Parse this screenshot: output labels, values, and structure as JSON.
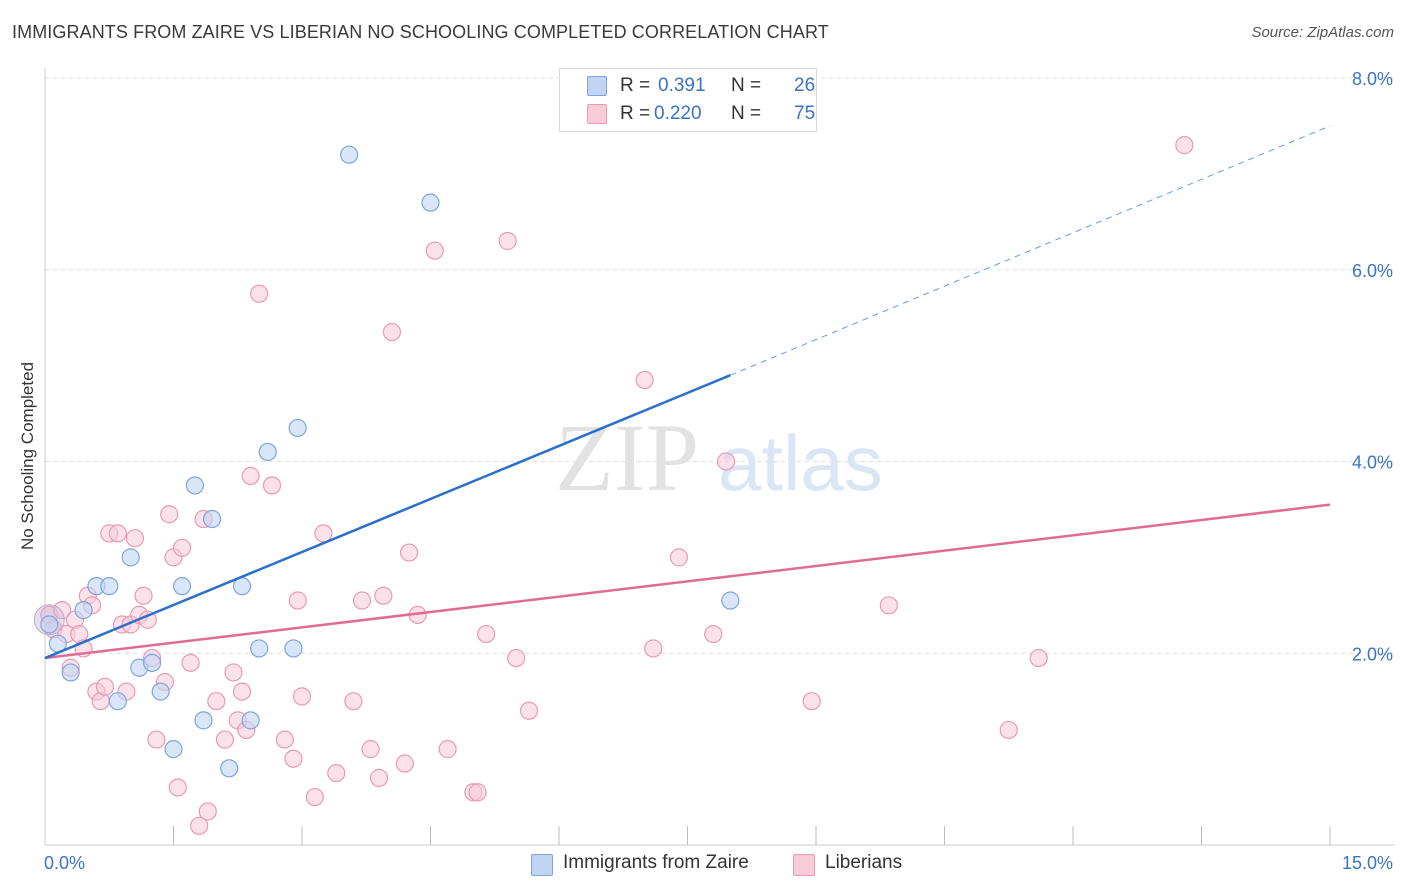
{
  "title": "IMMIGRANTS FROM ZAIRE VS LIBERIAN NO SCHOOLING COMPLETED CORRELATION CHART",
  "source": "Source: ZipAtlas.com",
  "watermark": {
    "zip": "ZIP",
    "atlas": "atlas"
  },
  "colors": {
    "zaire_fill": "#c0d5f3",
    "zaire_stroke": "#7fa5dc",
    "zaire_line": "#2a6fc9",
    "liberian_fill": "#f8cbd9",
    "liberian_stroke": "#e99ab5",
    "liberian_line": "#e06c96",
    "axis_text": "#3b73c4",
    "grid": "#dddddd"
  },
  "legend": {
    "rows": [
      {
        "r_label": "R =",
        "r_value": "0.391",
        "n_label": "N =",
        "n_value": "26"
      },
      {
        "r_label": "R =",
        "r_value": "0.220",
        "n_label": "N =",
        "n_value": "75"
      }
    ]
  },
  "chart_data": {
    "type": "scatter",
    "ylabel": "No Schooling Completed",
    "xlim": [
      0,
      15
    ],
    "ylim": [
      0,
      8
    ],
    "x_tick_labels": [
      "0.0%",
      "15.0%"
    ],
    "y_ticks": [
      {
        "value": 2,
        "label": "2.0%"
      },
      {
        "value": 4,
        "label": "4.0%"
      },
      {
        "value": 6,
        "label": "6.0%"
      },
      {
        "value": 8,
        "label": "8.0%"
      }
    ],
    "x_minor_ticks": [
      1.5,
      3,
      4.5,
      6,
      7.5,
      9,
      10.5,
      12,
      13.5,
      15
    ],
    "grid": true,
    "legend_position": "top-center",
    "series": [
      {
        "name": "Immigrants from Zaire",
        "r": 0.391,
        "n": 26,
        "points": [
          [
            0.05,
            2.3
          ],
          [
            0.15,
            2.1
          ],
          [
            0.3,
            1.8
          ],
          [
            0.45,
            2.45
          ],
          [
            0.6,
            2.7
          ],
          [
            0.75,
            2.7
          ],
          [
            0.85,
            1.5
          ],
          [
            1.0,
            3.0
          ],
          [
            1.1,
            1.85
          ],
          [
            1.25,
            1.9
          ],
          [
            1.35,
            1.6
          ],
          [
            1.5,
            1.0
          ],
          [
            1.6,
            2.7
          ],
          [
            1.75,
            3.75
          ],
          [
            1.85,
            1.3
          ],
          [
            1.95,
            3.4
          ],
          [
            2.15,
            0.8
          ],
          [
            2.3,
            2.7
          ],
          [
            2.4,
            1.3
          ],
          [
            2.5,
            2.05
          ],
          [
            2.6,
            4.1
          ],
          [
            2.9,
            2.05
          ],
          [
            2.95,
            4.35
          ],
          [
            3.55,
            7.2
          ],
          [
            4.5,
            6.7
          ],
          [
            8.0,
            2.55
          ]
        ],
        "trend": {
          "x0": 0.0,
          "y0": 1.95,
          "x1": 8.0,
          "y1": 4.9,
          "dash_x1": 15.0,
          "dash_y1": 7.5
        }
      },
      {
        "name": "Liberians",
        "r": 0.22,
        "n": 75,
        "points": [
          [
            0.05,
            2.4
          ],
          [
            0.1,
            2.25
          ],
          [
            0.2,
            2.45
          ],
          [
            0.25,
            2.2
          ],
          [
            0.3,
            1.85
          ],
          [
            0.35,
            2.35
          ],
          [
            0.4,
            2.2
          ],
          [
            0.45,
            2.05
          ],
          [
            0.5,
            2.6
          ],
          [
            0.55,
            2.5
          ],
          [
            0.6,
            1.6
          ],
          [
            0.65,
            1.5
          ],
          [
            0.7,
            1.65
          ],
          [
            0.75,
            3.25
          ],
          [
            0.85,
            3.25
          ],
          [
            0.9,
            2.3
          ],
          [
            0.95,
            1.6
          ],
          [
            1.0,
            2.3
          ],
          [
            1.05,
            3.2
          ],
          [
            1.1,
            2.4
          ],
          [
            1.15,
            2.6
          ],
          [
            1.2,
            2.35
          ],
          [
            1.25,
            1.95
          ],
          [
            1.3,
            1.1
          ],
          [
            1.4,
            1.7
          ],
          [
            1.45,
            3.45
          ],
          [
            1.5,
            3.0
          ],
          [
            1.55,
            0.6
          ],
          [
            1.6,
            3.1
          ],
          [
            1.7,
            1.9
          ],
          [
            1.8,
            0.2
          ],
          [
            1.85,
            3.4
          ],
          [
            1.9,
            0.35
          ],
          [
            2.0,
            1.5
          ],
          [
            2.1,
            1.1
          ],
          [
            2.2,
            1.8
          ],
          [
            2.25,
            1.3
          ],
          [
            2.3,
            1.6
          ],
          [
            2.35,
            1.2
          ],
          [
            2.4,
            3.85
          ],
          [
            2.5,
            5.75
          ],
          [
            2.65,
            3.75
          ],
          [
            2.8,
            1.1
          ],
          [
            2.9,
            0.9
          ],
          [
            2.95,
            2.55
          ],
          [
            3.0,
            1.55
          ],
          [
            3.15,
            0.5
          ],
          [
            3.25,
            3.25
          ],
          [
            3.4,
            0.75
          ],
          [
            3.6,
            1.5
          ],
          [
            3.7,
            2.55
          ],
          [
            3.8,
            1.0
          ],
          [
            3.9,
            0.7
          ],
          [
            3.95,
            2.6
          ],
          [
            4.05,
            5.35
          ],
          [
            4.2,
            0.85
          ],
          [
            4.25,
            3.05
          ],
          [
            4.35,
            2.4
          ],
          [
            4.55,
            6.2
          ],
          [
            4.7,
            1.0
          ],
          [
            5.0,
            0.55
          ],
          [
            5.05,
            0.55
          ],
          [
            5.15,
            2.2
          ],
          [
            5.4,
            6.3
          ],
          [
            5.5,
            1.95
          ],
          [
            5.65,
            1.4
          ],
          [
            7.0,
            4.85
          ],
          [
            7.1,
            2.05
          ],
          [
            7.4,
            3.0
          ],
          [
            7.8,
            2.2
          ],
          [
            7.95,
            4.0
          ],
          [
            8.95,
            1.5
          ],
          [
            9.85,
            2.5
          ],
          [
            11.25,
            1.2
          ],
          [
            11.6,
            1.95
          ],
          [
            13.3,
            7.3
          ]
        ],
        "trend": {
          "x0": 0.0,
          "y0": 1.95,
          "x1": 15.0,
          "y1": 3.55
        }
      }
    ]
  }
}
